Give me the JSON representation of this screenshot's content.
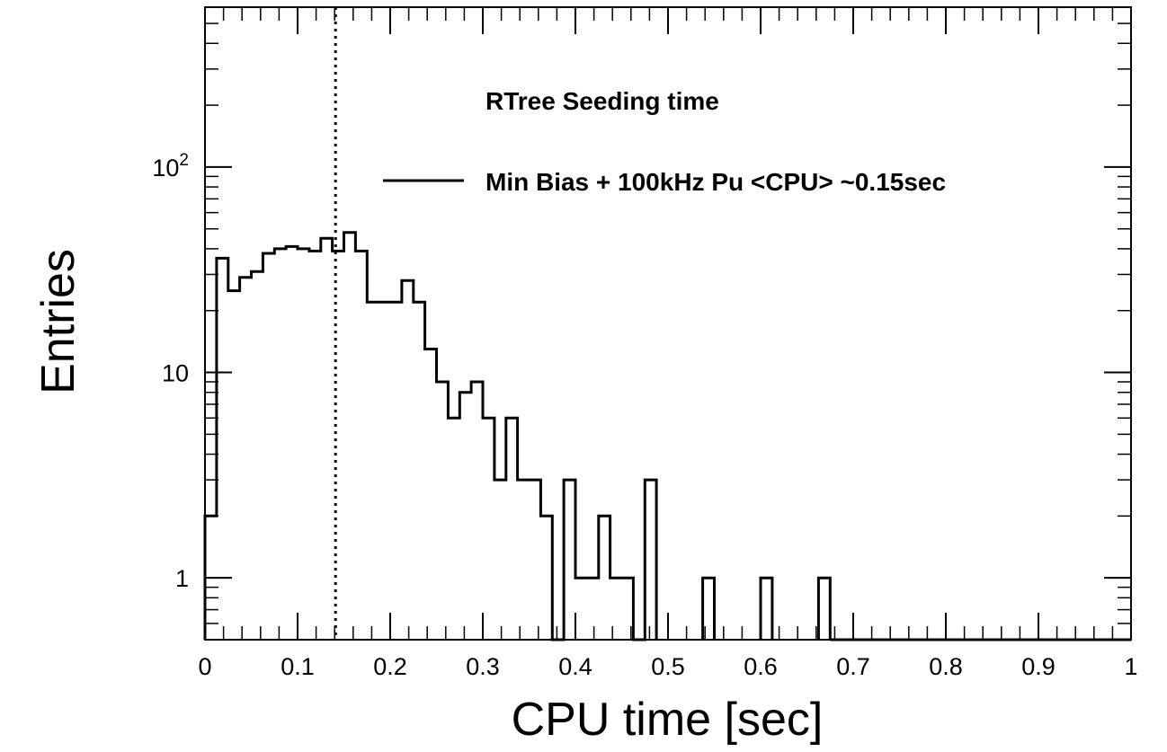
{
  "chart_data": {
    "type": "histogram",
    "title": "RTree Seeding time",
    "xlabel": "CPU time [sec]",
    "ylabel": "Entries",
    "xlim": [
      0,
      1
    ],
    "ylim": [
      0.5,
      600
    ],
    "yscale": "log",
    "bin_width": 0.0125,
    "bins": [
      [
        0.0,
        0.0125,
        2
      ],
      [
        0.0125,
        0.025,
        36
      ],
      [
        0.025,
        0.0375,
        25
      ],
      [
        0.0375,
        0.05,
        29
      ],
      [
        0.05,
        0.0625,
        31
      ],
      [
        0.0625,
        0.075,
        38
      ],
      [
        0.075,
        0.0875,
        40
      ],
      [
        0.0875,
        0.1,
        41
      ],
      [
        0.1,
        0.1125,
        40
      ],
      [
        0.1125,
        0.125,
        39
      ],
      [
        0.125,
        0.1375,
        45
      ],
      [
        0.1375,
        0.15,
        39
      ],
      [
        0.15,
        0.1625,
        48
      ],
      [
        0.1625,
        0.175,
        39
      ],
      [
        0.175,
        0.2125,
        22
      ],
      [
        0.2125,
        0.225,
        28
      ],
      [
        0.225,
        0.2375,
        22
      ],
      [
        0.2375,
        0.25,
        13
      ],
      [
        0.25,
        0.2625,
        9
      ],
      [
        0.2625,
        0.275,
        6
      ],
      [
        0.275,
        0.2875,
        8
      ],
      [
        0.2875,
        0.3,
        9
      ],
      [
        0.3,
        0.3125,
        6
      ],
      [
        0.3125,
        0.325,
        3
      ],
      [
        0.325,
        0.3375,
        6
      ],
      [
        0.3375,
        0.3625,
        3
      ],
      [
        0.3625,
        0.375,
        2
      ],
      [
        0.375,
        0.3875,
        0
      ],
      [
        0.3875,
        0.4,
        3
      ],
      [
        0.4,
        0.4125,
        1
      ],
      [
        0.4125,
        0.425,
        1
      ],
      [
        0.425,
        0.4375,
        2
      ],
      [
        0.4375,
        0.4625,
        1
      ],
      [
        0.4625,
        0.475,
        0
      ],
      [
        0.475,
        0.4875,
        3
      ],
      [
        0.5375,
        0.55,
        1
      ],
      [
        0.6,
        0.6125,
        1
      ],
      [
        0.6625,
        0.675,
        1
      ]
    ],
    "vertical_line": {
      "x": 0.141,
      "style": "dotted"
    },
    "legend": [
      {
        "label": "Min Bias + 100kHz Pu <CPU> ~0.15sec",
        "style": "line"
      }
    ],
    "legend_position": "top-right",
    "x_ticks": [
      {
        "v": 0,
        "label": "0"
      },
      {
        "v": 0.1,
        "label": "0.1"
      },
      {
        "v": 0.2,
        "label": "0.2"
      },
      {
        "v": 0.3,
        "label": "0.3"
      },
      {
        "v": 0.4,
        "label": "0.4"
      },
      {
        "v": 0.5,
        "label": "0.5"
      },
      {
        "v": 0.6,
        "label": "0.6"
      },
      {
        "v": 0.7,
        "label": "0.7"
      },
      {
        "v": 0.8,
        "label": "0.8"
      },
      {
        "v": 0.9,
        "label": "0.9"
      },
      {
        "v": 1,
        "label": "1"
      }
    ],
    "y_ticks": [
      {
        "v": 1,
        "base": "1",
        "exp": ""
      },
      {
        "v": 10,
        "base": "10",
        "exp": ""
      },
      {
        "v": 100,
        "base": "10",
        "exp": "2"
      }
    ],
    "colors": {
      "line": "#000000",
      "background": "#ffffff"
    }
  }
}
